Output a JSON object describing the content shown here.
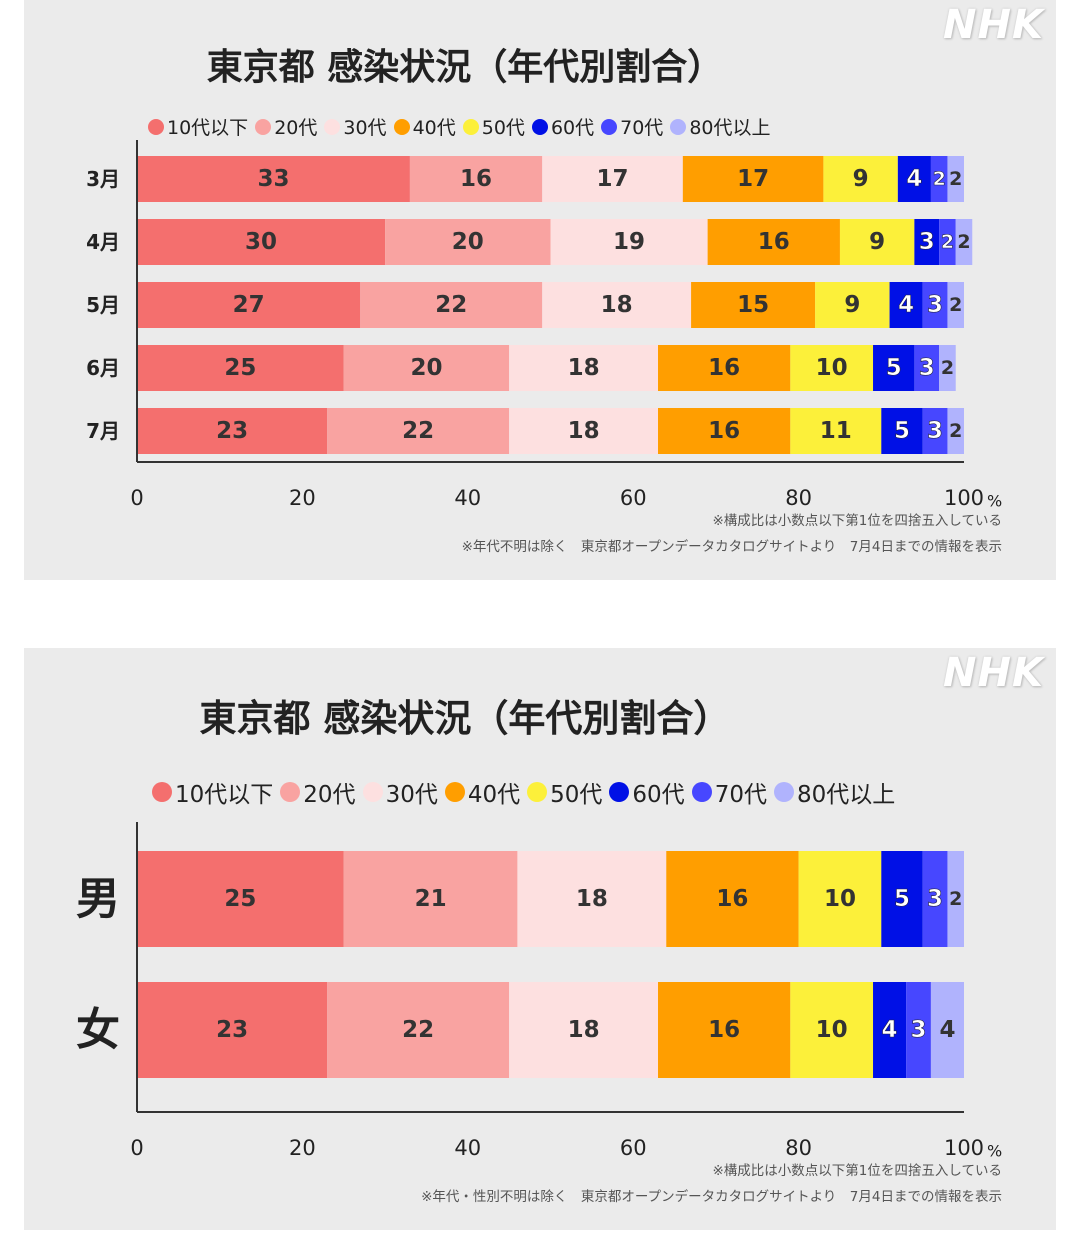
{
  "brand": "NHK",
  "colors": {
    "10代以下": "#f46f6e",
    "20代": "#f9a3a1",
    "30代": "#fde0e0",
    "40代": "#ff9e00",
    "50代": "#fcf03a",
    "60代": "#0010e6",
    "70代": "#4747ff",
    "80代以上": "#b0b3fd"
  },
  "chart_data": [
    {
      "type": "bar",
      "orientation": "horizontal",
      "stacked": true,
      "title": "東京都 感染状況（年代別割合）",
      "categories": [
        "3月",
        "4月",
        "5月",
        "6月",
        "7月"
      ],
      "series": [
        {
          "name": "10代以下",
          "values": [
            33,
            30,
            27,
            25,
            23
          ]
        },
        {
          "name": "20代",
          "values": [
            16,
            20,
            22,
            20,
            22
          ]
        },
        {
          "name": "30代",
          "values": [
            17,
            19,
            18,
            18,
            18
          ]
        },
        {
          "name": "40代",
          "values": [
            17,
            16,
            15,
            16,
            16
          ]
        },
        {
          "name": "50代",
          "values": [
            9,
            9,
            9,
            10,
            11
          ]
        },
        {
          "name": "60代",
          "values": [
            4,
            3,
            4,
            5,
            5
          ]
        },
        {
          "name": "70代",
          "values": [
            2,
            2,
            3,
            3,
            3
          ]
        },
        {
          "name": "80代以上",
          "values": [
            2,
            2,
            2,
            2,
            2
          ]
        }
      ],
      "xlim": [
        0,
        100
      ],
      "xticks": [
        "0",
        "20",
        "40",
        "60",
        "80",
        "100"
      ],
      "x_unit": "%",
      "xlabel": "",
      "ylabel": "",
      "legend_position": "top",
      "notes": [
        "※構成比は小数点以下第1位を四捨五入している",
        "※年代不明は除く　東京都オープンデータカタログサイトより　7月4日までの情報を表示"
      ]
    },
    {
      "type": "bar",
      "orientation": "horizontal",
      "stacked": true,
      "title": "東京都 感染状況（年代別割合）",
      "categories": [
        "男",
        "女"
      ],
      "series": [
        {
          "name": "10代以下",
          "values": [
            25,
            23
          ]
        },
        {
          "name": "20代",
          "values": [
            21,
            22
          ]
        },
        {
          "name": "30代",
          "values": [
            18,
            18
          ]
        },
        {
          "name": "40代",
          "values": [
            16,
            16
          ]
        },
        {
          "name": "50代",
          "values": [
            10,
            10
          ]
        },
        {
          "name": "60代",
          "values": [
            5,
            4
          ]
        },
        {
          "name": "70代",
          "values": [
            3,
            3
          ]
        },
        {
          "name": "80代以上",
          "values": [
            2,
            4
          ]
        }
      ],
      "xlim": [
        0,
        100
      ],
      "xticks": [
        "0",
        "20",
        "40",
        "60",
        "80",
        "100"
      ],
      "x_unit": "%",
      "xlabel": "",
      "ylabel": "",
      "legend_position": "top",
      "notes": [
        "※構成比は小数点以下第1位を四捨五入している",
        "※年代・性別不明は除く　東京都オープンデータカタログサイトより　7月4日までの情報を表示"
      ]
    }
  ]
}
